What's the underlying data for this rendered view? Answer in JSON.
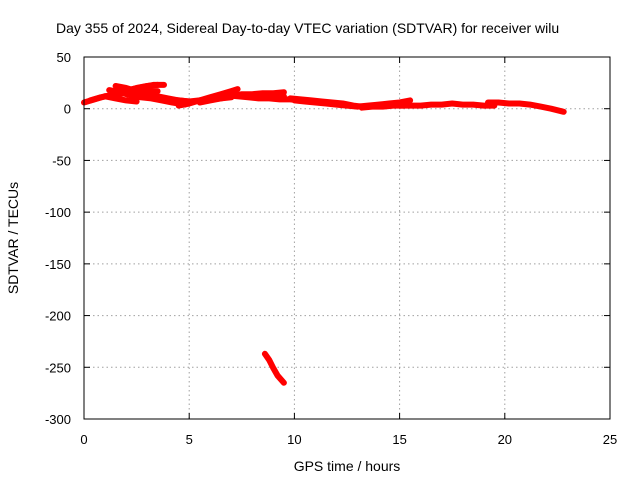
{
  "chart_data": {
    "type": "scatter",
    "title": "Day 355 of 2024, Sidereal Day-to-day VTEC variation (SDTVAR) for receiver wilu",
    "xlabel": "GPS time / hours",
    "ylabel": "SDTVAR / TECUs",
    "xlim": [
      0,
      25
    ],
    "ylim": [
      -300,
      50
    ],
    "xticks": [
      "0",
      "5",
      "10",
      "15",
      "20",
      "25"
    ],
    "yticks": [
      "50",
      "0",
      "-50",
      "-100",
      "-150",
      "-200",
      "-250",
      "-300"
    ],
    "grid": true,
    "color": "#ff0000",
    "series": [
      {
        "name": "SDTVAR",
        "segments": [
          [
            [
              0.0,
              6
            ],
            [
              0.5,
              9
            ],
            [
              1.0,
              12
            ],
            [
              1.5,
              14
            ],
            [
              2.0,
              15
            ],
            [
              2.5,
              16
            ],
            [
              3.0,
              17
            ],
            [
              3.5,
              17
            ]
          ],
          [
            [
              0.3,
              8
            ],
            [
              0.8,
              11
            ],
            [
              1.3,
              13
            ],
            [
              1.8,
              16
            ],
            [
              2.3,
              19
            ],
            [
              2.8,
              21
            ],
            [
              3.3,
              23
            ],
            [
              3.8,
              23
            ]
          ],
          [
            [
              1.5,
              22
            ],
            [
              2.0,
              20
            ],
            [
              2.5,
              17
            ],
            [
              3.0,
              14
            ],
            [
              3.5,
              12
            ],
            [
              4.0,
              10
            ],
            [
              4.5,
              8
            ],
            [
              5.0,
              7
            ]
          ],
          [
            [
              1.2,
              18
            ],
            [
              1.7,
              16
            ],
            [
              2.2,
              13
            ],
            [
              2.7,
              11
            ],
            [
              3.2,
              10
            ],
            [
              3.7,
              8
            ],
            [
              4.2,
              6
            ],
            [
              4.8,
              4
            ]
          ],
          [
            [
              1.0,
              12
            ],
            [
              1.5,
              10
            ],
            [
              2.0,
              8
            ],
            [
              2.5,
              7
            ]
          ],
          [
            [
              2.0,
              17
            ],
            [
              2.5,
              20
            ],
            [
              3.0,
              22
            ],
            [
              3.5,
              23
            ]
          ],
          [
            [
              3.5,
              10
            ],
            [
              4.0,
              9
            ],
            [
              4.5,
              8
            ],
            [
              5.0,
              7
            ],
            [
              5.5,
              8
            ],
            [
              6.0,
              9
            ],
            [
              6.5,
              10
            ],
            [
              7.0,
              11
            ]
          ],
          [
            [
              4.5,
              3
            ],
            [
              5.0,
              5
            ],
            [
              5.5,
              8
            ],
            [
              6.0,
              11
            ],
            [
              6.5,
              14
            ],
            [
              7.0,
              17
            ],
            [
              7.3,
              19
            ]
          ],
          [
            [
              5.5,
              6
            ],
            [
              6.0,
              8
            ],
            [
              6.5,
              10
            ],
            [
              7.0,
              12
            ],
            [
              7.5,
              14
            ],
            [
              8.0,
              14
            ],
            [
              8.5,
              15
            ],
            [
              9.0,
              15
            ],
            [
              9.5,
              16
            ]
          ],
          [
            [
              6.8,
              13
            ],
            [
              7.3,
              12
            ],
            [
              7.8,
              11
            ],
            [
              8.3,
              10
            ],
            [
              8.8,
              10
            ],
            [
              9.3,
              9
            ],
            [
              9.8,
              9
            ],
            [
              10.3,
              8
            ]
          ],
          [
            [
              8.5,
              13
            ],
            [
              9.0,
              12
            ],
            [
              9.5,
              12
            ]
          ],
          [
            [
              10.0,
              8
            ],
            [
              10.5,
              7
            ],
            [
              11.0,
              6
            ],
            [
              11.5,
              5
            ],
            [
              12.0,
              4
            ],
            [
              12.5,
              3
            ],
            [
              13.0,
              2
            ]
          ],
          [
            [
              9.8,
              10
            ],
            [
              10.3,
              9
            ],
            [
              10.8,
              8
            ],
            [
              11.3,
              7
            ],
            [
              11.8,
              6
            ],
            [
              12.3,
              5
            ],
            [
              12.8,
              3
            ],
            [
              13.2,
              2
            ]
          ],
          [
            [
              13.0,
              2
            ],
            [
              13.5,
              3
            ],
            [
              14.0,
              4
            ],
            [
              14.5,
              5
            ],
            [
              15.0,
              6
            ],
            [
              15.5,
              8
            ]
          ],
          [
            [
              13.2,
              1
            ],
            [
              13.7,
              2
            ],
            [
              14.2,
              2
            ],
            [
              14.7,
              3
            ],
            [
              15.2,
              3
            ]
          ],
          [
            [
              15.0,
              3
            ],
            [
              15.5,
              3
            ],
            [
              16.0,
              3
            ],
            [
              16.5,
              4
            ],
            [
              17.0,
              4
            ],
            [
              17.5,
              5
            ],
            [
              18.0,
              4
            ],
            [
              18.5,
              4
            ],
            [
              19.0,
              3
            ],
            [
              19.5,
              3
            ]
          ],
          [
            [
              19.2,
              6
            ],
            [
              19.7,
              6
            ],
            [
              20.2,
              5
            ],
            [
              20.7,
              5
            ],
            [
              21.2,
              4
            ],
            [
              21.7,
              2
            ],
            [
              22.2,
              0
            ],
            [
              22.8,
              -3
            ]
          ],
          [
            [
              8.6,
              -237
            ],
            [
              8.8,
              -243
            ],
            [
              9.0,
              -251
            ],
            [
              9.2,
              -258
            ],
            [
              9.5,
              -265
            ]
          ]
        ]
      }
    ]
  }
}
